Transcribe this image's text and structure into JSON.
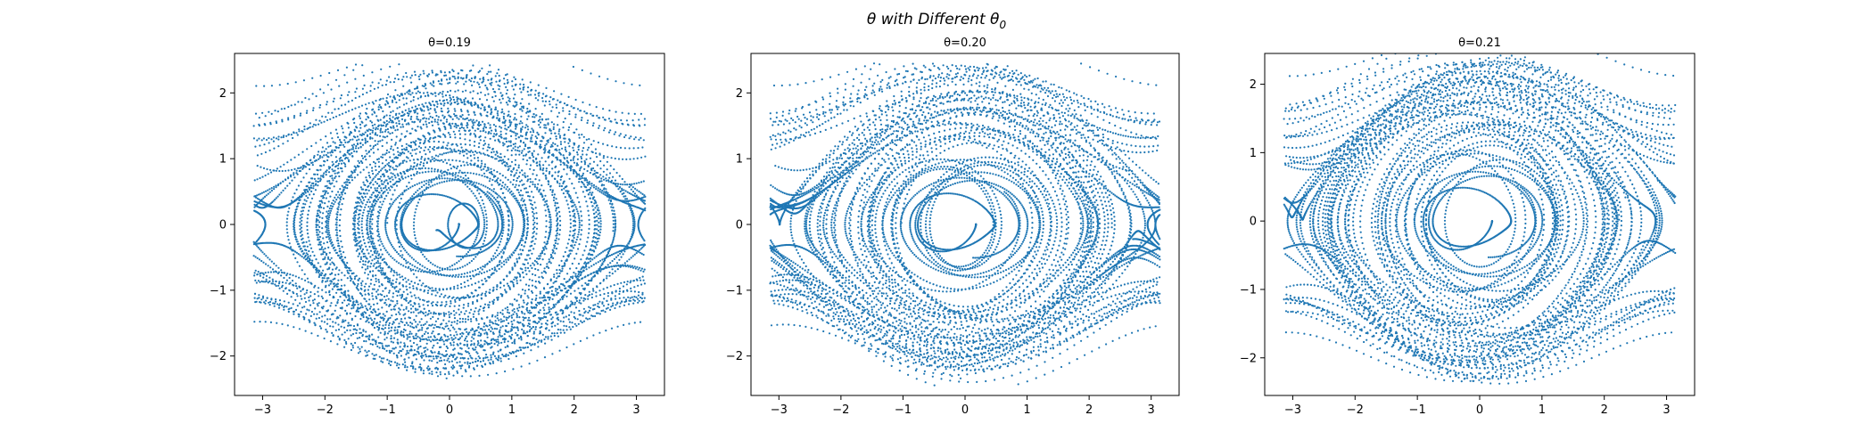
{
  "figure": {
    "suptitle_base": "θ with Different θ",
    "suptitle_sub": "0"
  },
  "chart_data": [
    {
      "type": "scatter",
      "title": "θ=0.19",
      "xlabel": "",
      "ylabel": "",
      "xlim": [
        -3.45,
        3.45
      ],
      "ylim": [
        -2.6,
        2.6
      ],
      "xticks": [
        -3,
        -2,
        -1,
        0,
        1,
        2,
        3
      ],
      "yticks": [
        -2,
        -1,
        0,
        1,
        2
      ],
      "grid": false,
      "legend": "none",
      "color": "#1f77b4",
      "theta0": 0.19
    },
    {
      "type": "scatter",
      "title": "θ=0.20",
      "xlabel": "",
      "ylabel": "",
      "xlim": [
        -3.45,
        3.45
      ],
      "ylim": [
        -2.6,
        2.6
      ],
      "xticks": [
        -3,
        -2,
        -1,
        0,
        1,
        2,
        3
      ],
      "yticks": [
        -2,
        -1,
        0,
        1,
        2
      ],
      "grid": false,
      "legend": "none",
      "color": "#1f77b4",
      "theta0": 0.2
    },
    {
      "type": "scatter",
      "title": "θ=0.21",
      "xlabel": "",
      "ylabel": "",
      "xlim": [
        -3.45,
        3.45
      ],
      "ylim": [
        -2.55,
        2.45
      ],
      "xticks": [
        -3,
        -2,
        -1,
        0,
        1,
        2,
        3
      ],
      "yticks": [
        -2,
        -1,
        0,
        1,
        2
      ],
      "grid": false,
      "legend": "none",
      "color": "#1f77b4",
      "theta0": 0.21
    }
  ]
}
